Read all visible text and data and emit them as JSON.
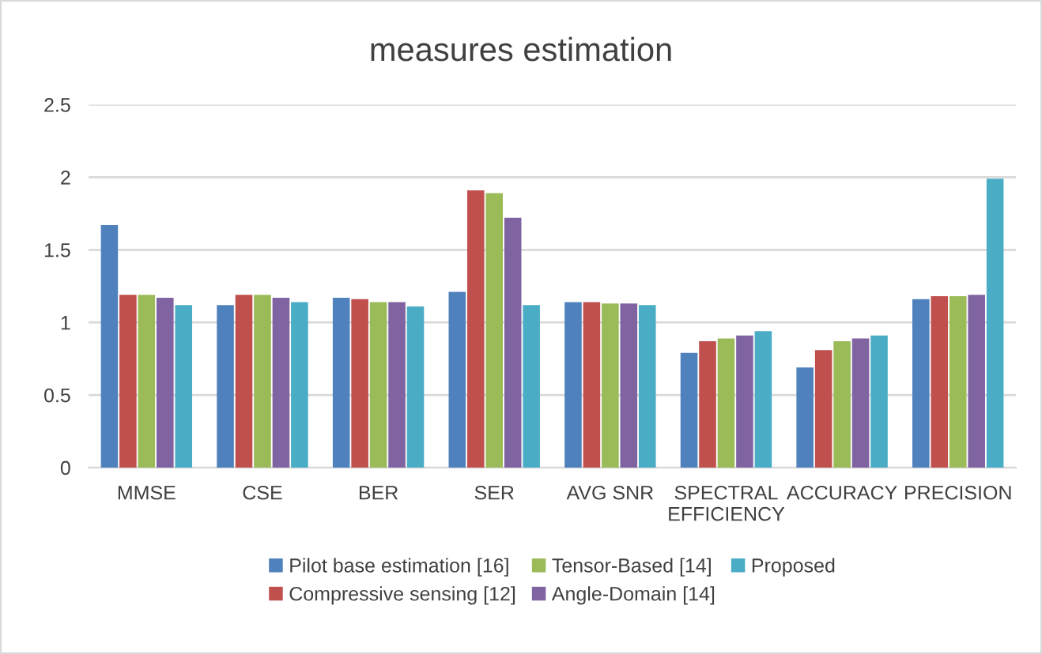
{
  "chart_data": {
    "type": "bar",
    "title": "measures estimation",
    "categories": [
      "MMSE",
      "CSE",
      "BER",
      "SER",
      "AVG SNR",
      "SPECTRAL EFFICIENCY",
      "ACCURACY",
      "PRECISION"
    ],
    "series": [
      {
        "name": "Pilot base estimation [16]",
        "color": "#4f81bd",
        "values": [
          1.67,
          1.12,
          1.17,
          1.21,
          1.14,
          0.79,
          0.69,
          1.16
        ]
      },
      {
        "name": "Compressive sensing [12]",
        "color": "#c0504d",
        "values": [
          1.19,
          1.19,
          1.16,
          1.91,
          1.14,
          0.87,
          0.81,
          1.18
        ]
      },
      {
        "name": "Tensor-Based [14]",
        "color": "#9bbb59",
        "values": [
          1.19,
          1.19,
          1.14,
          1.89,
          1.13,
          0.89,
          0.87,
          1.18
        ]
      },
      {
        "name": "Angle-Domain [14]",
        "color": "#8064a2",
        "values": [
          1.17,
          1.17,
          1.14,
          1.72,
          1.13,
          0.91,
          0.89,
          1.19
        ]
      },
      {
        "name": "Proposed",
        "color": "#4bacc6",
        "values": [
          1.12,
          1.14,
          1.11,
          1.12,
          1.12,
          0.94,
          0.91,
          1.99
        ]
      }
    ],
    "ylim": [
      0,
      2.5
    ],
    "yticks": [
      0,
      0.5,
      1,
      1.5,
      2,
      2.5
    ],
    "grid": "y",
    "legend": "bottom"
  }
}
